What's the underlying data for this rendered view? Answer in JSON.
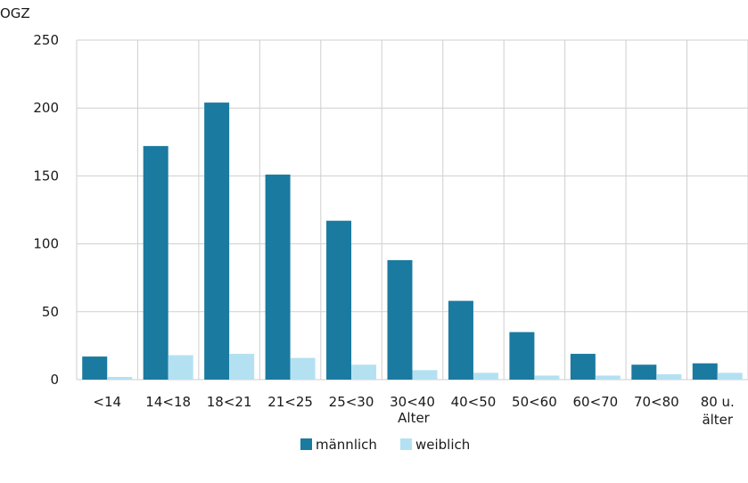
{
  "chart_data": {
    "type": "bar",
    "ylabel": "OGZ",
    "xlabel": "Alter",
    "ylim": [
      0,
      250
    ],
    "yticks": [
      0,
      50,
      100,
      150,
      200,
      250
    ],
    "grid": true,
    "legend": "bottom",
    "categories": [
      [
        "<14"
      ],
      [
        "14<18"
      ],
      [
        "18<21"
      ],
      [
        "21<25"
      ],
      [
        "25<30"
      ],
      [
        "30<40"
      ],
      [
        "40<50"
      ],
      [
        "50<60"
      ],
      [
        "60<70"
      ],
      [
        "70<80"
      ],
      [
        "80 u.",
        "älter"
      ]
    ],
    "series": [
      {
        "name": "männlich",
        "color": "#1b7aa0",
        "values": [
          17,
          172,
          204,
          151,
          117,
          88,
          58,
          35,
          19,
          11,
          12
        ]
      },
      {
        "name": "weiblich",
        "color": "#b3e1f2",
        "values": [
          2,
          18,
          19,
          16,
          11,
          7,
          5,
          3,
          3,
          4,
          5
        ]
      }
    ]
  }
}
